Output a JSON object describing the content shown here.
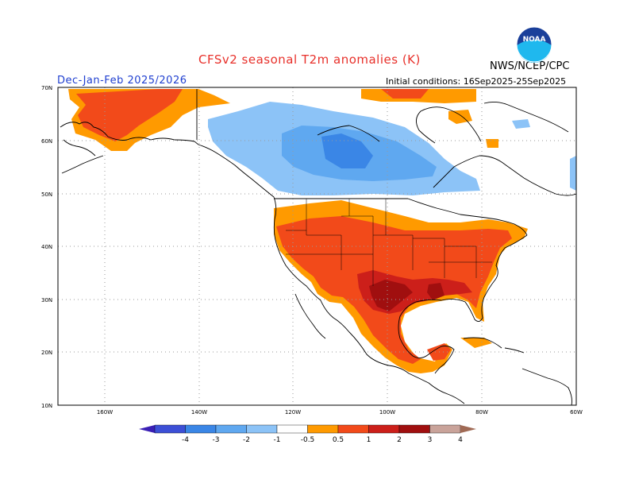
{
  "title": "CFSv2 seasonal T2m anomalies (K)",
  "period": "Dec-Jan-Feb 2025/2026",
  "initial_conditions": "Initial conditions: 16Sep2025-25Sep2025",
  "org": "NWS/NCEP/CPC",
  "logo_text": "NOAA",
  "lat_labels": [
    "70N",
    "60N",
    "50N",
    "40N",
    "30N",
    "20N",
    "10N"
  ],
  "lon_labels": [
    "160W",
    "140W",
    "120W",
    "100W",
    "80W",
    "60W"
  ],
  "colorbar": {
    "labels": [
      "-4",
      "-3",
      "-2",
      "-1",
      "-0.5",
      "0.5",
      "1",
      "2",
      "3",
      "4"
    ],
    "colors": [
      "#3a1fb5",
      "#3c4fd6",
      "#3a86e6",
      "#5fa8f0",
      "#8cc3f7",
      "#ffffff",
      "#ff9a00",
      "#f24a1a",
      "#cc1f1a",
      "#a00f0f",
      "#c9a39a",
      "#a06a55"
    ]
  },
  "anomaly_colors": {
    "cold_weak": "#8cc3f7",
    "cold_mid": "#5fa8f0",
    "warm_weak": "#ff9a00",
    "warm_mid": "#f24a1a",
    "warm_strong": "#cc1f1a",
    "warm_max": "#a00f0f"
  }
}
